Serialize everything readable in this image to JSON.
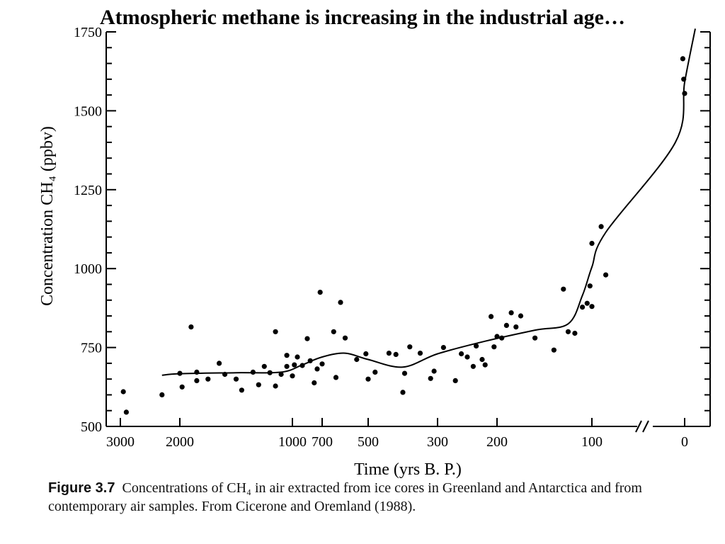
{
  "title": "Atmospheric methane is increasing in the industrial age…",
  "caption": {
    "figure_label": "Figure 3.7",
    "text": "Concentrations of CH₄ in air extracted from ice cores in Greenland and Antarctica and from contemporary air samples. From Cicerone and Oremland (1988)."
  },
  "chart_data": {
    "type": "scatter",
    "title": "",
    "xlabel": "Time (yrs B. P.)",
    "ylabel": "Concentration CH₄ (ppbv)",
    "ylim": [
      500,
      1750
    ],
    "x_axis_note": "axis is nonlinear with a break (//) between 100 and 0",
    "x_ticks": [
      "3000",
      "2000",
      "1000",
      "700",
      "500",
      "300",
      "200",
      "100",
      "0"
    ],
    "y_ticks": [
      "500",
      "750",
      "1000",
      "1250",
      "1500",
      "1750"
    ],
    "grid": false,
    "series": [
      {
        "kind": "points",
        "points": [
          [
            2950,
            610
          ],
          [
            2900,
            545
          ],
          [
            2300,
            600
          ],
          [
            2000,
            668
          ],
          [
            1980,
            625
          ],
          [
            1900,
            815
          ],
          [
            1850,
            645
          ],
          [
            1850,
            672
          ],
          [
            1750,
            650
          ],
          [
            1650,
            700
          ],
          [
            1600,
            665
          ],
          [
            1500,
            650
          ],
          [
            1450,
            615
          ],
          [
            1350,
            672
          ],
          [
            1300,
            632
          ],
          [
            1250,
            690
          ],
          [
            1200,
            670
          ],
          [
            1150,
            800
          ],
          [
            1150,
            628
          ],
          [
            1100,
            665
          ],
          [
            1050,
            725
          ],
          [
            1050,
            690
          ],
          [
            1000,
            660
          ],
          [
            980,
            695
          ],
          [
            950,
            720
          ],
          [
            900,
            693
          ],
          [
            850,
            778
          ],
          [
            820,
            708
          ],
          [
            780,
            638
          ],
          [
            750,
            682
          ],
          [
            720,
            925
          ],
          [
            700,
            698
          ],
          [
            650,
            800
          ],
          [
            640,
            655
          ],
          [
            620,
            893
          ],
          [
            600,
            780
          ],
          [
            550,
            712
          ],
          [
            510,
            730
          ],
          [
            500,
            650
          ],
          [
            480,
            672
          ],
          [
            440,
            732
          ],
          [
            420,
            728
          ],
          [
            400,
            608
          ],
          [
            395,
            668
          ],
          [
            380,
            752
          ],
          [
            350,
            732
          ],
          [
            320,
            652
          ],
          [
            310,
            675
          ],
          [
            290,
            750
          ],
          [
            270,
            645
          ],
          [
            260,
            730
          ],
          [
            250,
            720
          ],
          [
            240,
            690
          ],
          [
            235,
            755
          ],
          [
            225,
            712
          ],
          [
            220,
            695
          ],
          [
            210,
            848
          ],
          [
            205,
            752
          ],
          [
            200,
            785
          ],
          [
            195,
            780
          ],
          [
            190,
            820
          ],
          [
            185,
            860
          ],
          [
            180,
            815
          ],
          [
            175,
            850
          ],
          [
            160,
            780
          ],
          [
            140,
            742
          ],
          [
            130,
            935
          ],
          [
            125,
            800
          ],
          [
            118,
            795
          ],
          [
            110,
            878
          ],
          [
            105,
            890
          ],
          [
            102,
            945
          ],
          [
            100,
            880
          ],
          [
            100,
            1080
          ],
          [
            90,
            1133
          ],
          [
            85,
            980
          ],
          [
            2,
            1665
          ],
          [
            1,
            1600
          ],
          [
            0,
            1555
          ]
        ]
      },
      {
        "kind": "curve",
        "points": [
          [
            2300,
            662
          ],
          [
            2000,
            667
          ],
          [
            1500,
            670
          ],
          [
            1100,
            672
          ],
          [
            900,
            695
          ],
          [
            700,
            720
          ],
          [
            600,
            732
          ],
          [
            500,
            712
          ],
          [
            400,
            688
          ],
          [
            300,
            730
          ],
          [
            220,
            770
          ],
          [
            160,
            805
          ],
          [
            125,
            825
          ],
          [
            110,
            915
          ],
          [
            100,
            1005
          ],
          [
            85,
            1115
          ],
          [
            10,
            1400
          ],
          [
            0,
            1590
          ],
          [
            -5,
            1760
          ]
        ]
      }
    ]
  }
}
